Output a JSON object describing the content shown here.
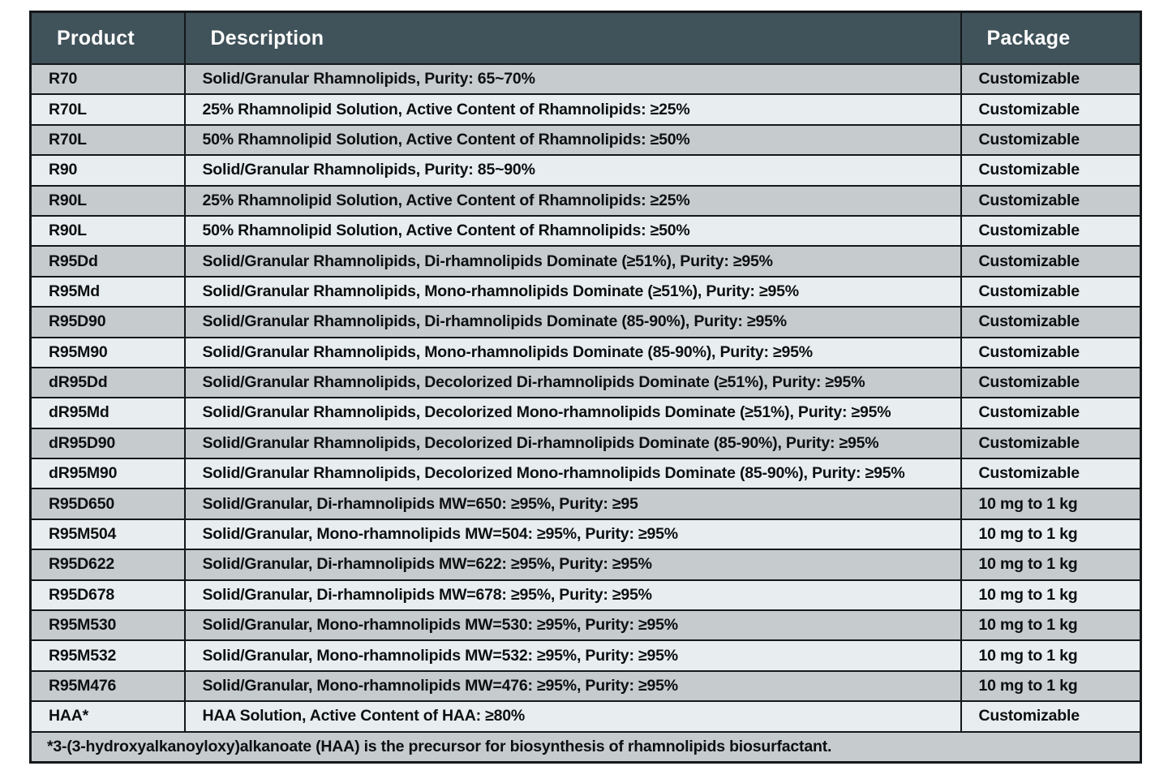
{
  "colors": {
    "page-bg": "#ffffff",
    "header-bg": "#40525a",
    "header-fg": "#ffffff",
    "row-grey": "#c6cbce",
    "row-light": "#e8eef0",
    "border-color": "#15181a",
    "text-color": "#0d0f10"
  },
  "table": {
    "columns": [
      {
        "label": "Product"
      },
      {
        "label": "Description"
      },
      {
        "label": "Package"
      }
    ],
    "rows": [
      {
        "product": "R70",
        "description": "Solid/Granular Rhamnolipids, Purity: 65~70%",
        "package": "Customizable"
      },
      {
        "product": "R70L",
        "description": "25% Rhamnolipid Solution, Active Content of Rhamnolipids: ≥25%",
        "package": "Customizable"
      },
      {
        "product": "R70L",
        "description": "50% Rhamnolipid Solution, Active Content of Rhamnolipids: ≥50%",
        "package": "Customizable"
      },
      {
        "product": "R90",
        "description": "Solid/Granular Rhamnolipids, Purity: 85~90%",
        "package": "Customizable"
      },
      {
        "product": "R90L",
        "description": "25% Rhamnolipid Solution, Active Content of Rhamnolipids: ≥25%",
        "package": "Customizable"
      },
      {
        "product": "R90L",
        "description": "50% Rhamnolipid Solution, Active Content of Rhamnolipids: ≥50%",
        "package": "Customizable"
      },
      {
        "product": "R95Dd",
        "description": "Solid/Granular Rhamnolipids, Di-rhamnolipids Dominate (≥51%), Purity: ≥95%",
        "package": "Customizable"
      },
      {
        "product": "R95Md",
        "description": "Solid/Granular Rhamnolipids, Mono-rhamnolipids Dominate (≥51%), Purity: ≥95%",
        "package": "Customizable"
      },
      {
        "product": "R95D90",
        "description": "Solid/Granular Rhamnolipids, Di-rhamnolipids Dominate (85-90%), Purity: ≥95%",
        "package": "Customizable"
      },
      {
        "product": "R95M90",
        "description": "Solid/Granular Rhamnolipids, Mono-rhamnolipids Dominate (85-90%), Purity: ≥95%",
        "package": "Customizable"
      },
      {
        "product": "dR95Dd",
        "description": "Solid/Granular Rhamnolipids, Decolorized Di-rhamnolipids Dominate (≥51%), Purity: ≥95%",
        "package": "Customizable"
      },
      {
        "product": "dR95Md",
        "description": "Solid/Granular Rhamnolipids, Decolorized Mono-rhamnolipids Dominate (≥51%), Purity: ≥95%",
        "package": "Customizable"
      },
      {
        "product": "dR95D90",
        "description": "Solid/Granular Rhamnolipids, Decolorized Di-rhamnolipids Dominate (85-90%), Purity: ≥95%",
        "package": "Customizable"
      },
      {
        "product": "dR95M90",
        "description": "Solid/Granular Rhamnolipids, Decolorized Mono-rhamnolipids Dominate (85-90%), Purity: ≥95%",
        "package": "Customizable"
      },
      {
        "product": "R95D650",
        "description": "Solid/Granular, Di-rhamnolipids MW=650: ≥95%, Purity: ≥95",
        "package": "10 mg to 1 kg"
      },
      {
        "product": "R95M504",
        "description": "Solid/Granular, Mono-rhamnolipids MW=504: ≥95%, Purity: ≥95%",
        "package": "10 mg to 1 kg"
      },
      {
        "product": "R95D622",
        "description": "Solid/Granular, Di-rhamnolipids MW=622: ≥95%, Purity: ≥95%",
        "package": "10 mg to 1 kg"
      },
      {
        "product": "R95D678",
        "description": "Solid/Granular, Di-rhamnolipids MW=678: ≥95%, Purity: ≥95%",
        "package": "10 mg to 1 kg"
      },
      {
        "product": "R95M530",
        "description": "Solid/Granular, Mono-rhamnolipids MW=530: ≥95%, Purity: ≥95%",
        "package": "10 mg to 1 kg"
      },
      {
        "product": "R95M532",
        "description": "Solid/Granular, Mono-rhamnolipids MW=532: ≥95%, Purity: ≥95%",
        "package": "10 mg to 1 kg"
      },
      {
        "product": "R95M476",
        "description": "Solid/Granular, Mono-rhamnolipids MW=476: ≥95%, Purity: ≥95%",
        "package": "10 mg to 1 kg"
      },
      {
        "product": "HAA*",
        "description": "HAA Solution, Active Content of HAA: ≥80%",
        "package": "Customizable"
      }
    ],
    "footnote": "*3-(3-hydroxyalkanoyloxy)alkanoate (HAA) is the precursor for biosynthesis of rhamnolipids biosurfactant."
  }
}
